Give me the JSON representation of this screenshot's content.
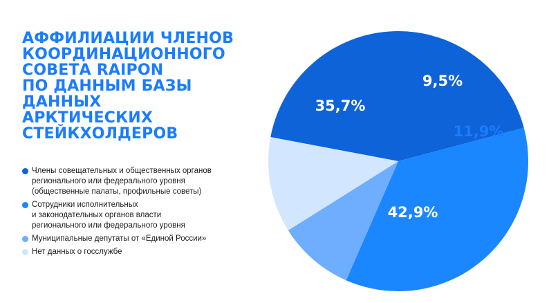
{
  "title_lines": [
    "АФФИЛИАЦИИ ЧЛЕНОВ",
    "КООРДИНАЦИОННОГО",
    "СОВЕТА RAIPON",
    "ПО ДАННЫМ БАЗЫ",
    "ДАННЫХ",
    "АРКТИЧЕСКИХ",
    "СТЕЙКХОЛДЕРОВ"
  ],
  "chart_data": {
    "type": "pie",
    "title": "АФФИЛИАЦИИ ЧЛЕНОВ КООРДИНАЦИОННОГО СОВЕТА RAIPON ПО ДАННЫМ БАЗЫ ДАННЫХ АРКТИЧЕСКИХ СТЕЙКХОЛДЕРОВ",
    "legend_position": "left",
    "slices": [
      {
        "label_lines": [
          "Члены совещательных и общественных органов",
          "регионального или федерального уровня",
          "(общественные палаты, профильные советы)"
        ],
        "value": 42.9,
        "value_label": "42,9%",
        "color": "#0e63d8",
        "text_color": "#ffffff"
      },
      {
        "label_lines": [
          "Сотрудники исполнительных",
          "и законодательных органов власти",
          "регионального или федерального уровня"
        ],
        "value": 35.7,
        "value_label": "35,7%",
        "color": "#1a86ff",
        "text_color": "#ffffff"
      },
      {
        "label_lines": [
          "Муниципальные депутаты от «Единой России»"
        ],
        "value": 9.5,
        "value_label": "9,5%",
        "color": "#6fadff",
        "text_color": "#ffffff"
      },
      {
        "label_lines": [
          "Нет данных о госслужбе"
        ],
        "value": 11.9,
        "value_label": "11,9%",
        "color": "#d3e6ff",
        "text_color": "#1a7cff"
      }
    ]
  }
}
